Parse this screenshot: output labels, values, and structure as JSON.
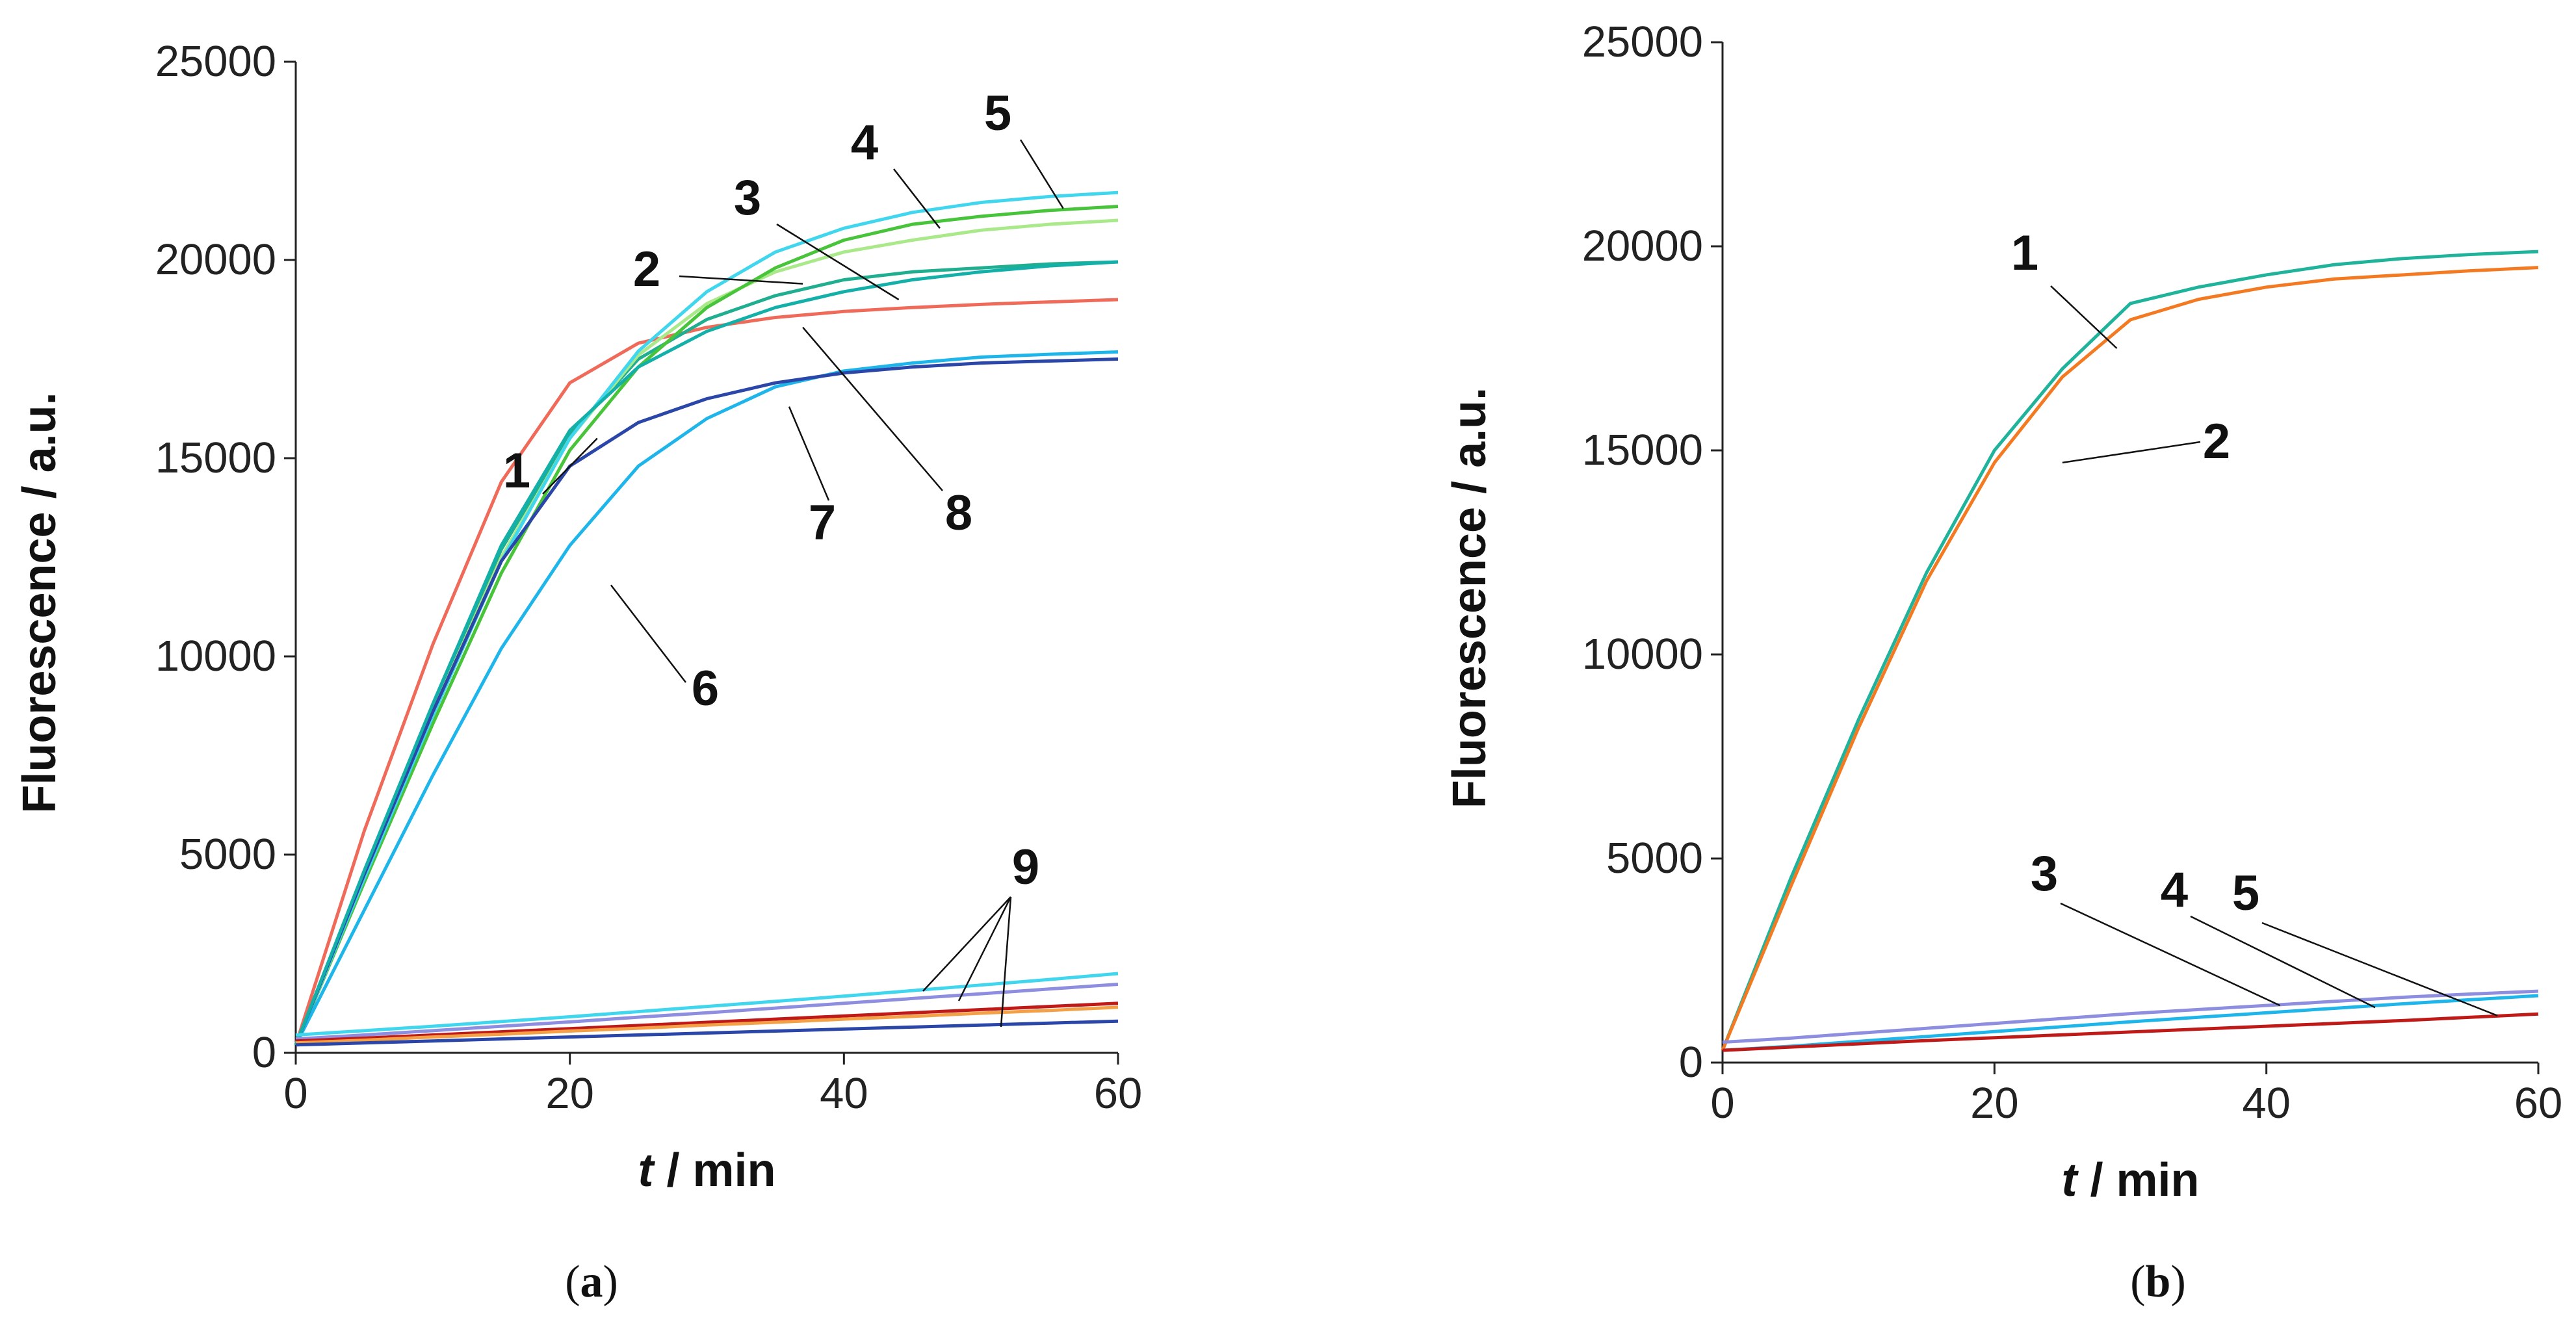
{
  "chart_data": [
    {
      "type": "line",
      "panel": "a",
      "caption": {
        "open": "(",
        "letter": "a",
        "close": ")"
      },
      "xlabel": {
        "italic": "t",
        "rest": " / min"
      },
      "ylabel": "Fluorescence / a.u.",
      "xlim": [
        0,
        60
      ],
      "ylim": [
        0,
        25000
      ],
      "xticks": [
        0,
        20,
        40,
        60
      ],
      "yticks": [
        0,
        5000,
        10000,
        15000,
        20000,
        25000
      ],
      "x": [
        0,
        5,
        10,
        15,
        20,
        25,
        30,
        35,
        40,
        45,
        50,
        55,
        60
      ],
      "series": [
        {
          "name": "1",
          "color": "#f06a5a",
          "values": [
            200,
            5600,
            10300,
            14400,
            16900,
            17900,
            18300,
            18550,
            18700,
            18800,
            18880,
            18940,
            19000
          ]
        },
        {
          "name": "2",
          "color": "#1fae8f",
          "values": [
            200,
            4500,
            8700,
            12700,
            15600,
            17500,
            18500,
            19100,
            19500,
            19700,
            19800,
            19900,
            19950
          ]
        },
        {
          "name": "3",
          "color": "#a9e98a",
          "values": [
            200,
            4500,
            8600,
            12500,
            15500,
            17600,
            18900,
            19700,
            20200,
            20500,
            20750,
            20900,
            21000
          ]
        },
        {
          "name": "4",
          "color": "#47c43a",
          "values": [
            200,
            4300,
            8300,
            12100,
            15200,
            17300,
            18800,
            19800,
            20500,
            20900,
            21100,
            21250,
            21350
          ]
        },
        {
          "name": "5",
          "color": "#3fd6ee",
          "values": [
            200,
            4400,
            8500,
            12400,
            15500,
            17700,
            19200,
            20200,
            20800,
            21200,
            21450,
            21600,
            21700
          ]
        },
        {
          "name": "6",
          "color": "#1eb6ea",
          "values": [
            200,
            3600,
            7000,
            10200,
            12800,
            14800,
            16000,
            16800,
            17200,
            17400,
            17550,
            17620,
            17680
          ]
        },
        {
          "name": "7",
          "color": "#2a46a8",
          "values": [
            200,
            4500,
            8600,
            12400,
            14800,
            15900,
            16500,
            16900,
            17150,
            17300,
            17400,
            17450,
            17500
          ]
        },
        {
          "name": "8",
          "color": "#12b0a8",
          "values": [
            200,
            4600,
            8800,
            12800,
            15700,
            17300,
            18200,
            18800,
            19200,
            19500,
            19700,
            19850,
            19950
          ]
        },
        {
          "name": "9a",
          "color": "#3fd6ee",
          "values": [
            450,
            560,
            670,
            790,
            910,
            1040,
            1170,
            1300,
            1430,
            1570,
            1710,
            1850,
            2000
          ]
        },
        {
          "name": "9b",
          "color": "#8d8ee0",
          "values": [
            350,
            450,
            560,
            670,
            780,
            900,
            1010,
            1130,
            1250,
            1370,
            1490,
            1610,
            1730
          ]
        },
        {
          "name": "9c",
          "color": "#c01a18",
          "values": [
            300,
            370,
            450,
            530,
            610,
            690,
            770,
            850,
            930,
            1010,
            1090,
            1170,
            1250
          ]
        },
        {
          "name": "9d",
          "color": "#f3a046",
          "values": [
            250,
            320,
            400,
            470,
            550,
            620,
            700,
            770,
            850,
            920,
            1000,
            1070,
            1150
          ]
        },
        {
          "name": "9e",
          "color": "#2a46a8",
          "values": [
            200,
            250,
            300,
            350,
            400,
            450,
            500,
            550,
            600,
            650,
            700,
            750,
            800
          ]
        }
      ],
      "labels": [
        "1",
        "2",
        "3",
        "4",
        "5",
        "6",
        "7",
        "8",
        "9"
      ]
    },
    {
      "type": "line",
      "panel": "b",
      "caption": {
        "open": "(",
        "letter": "b",
        "close": ")"
      },
      "xlabel": {
        "italic": "t",
        "rest": " / min"
      },
      "ylabel": "Fluorescence / a.u.",
      "xlim": [
        0,
        60
      ],
      "ylim": [
        0,
        25000
      ],
      "xticks": [
        0,
        20,
        40,
        60
      ],
      "yticks": [
        0,
        5000,
        10000,
        15000,
        20000,
        25000
      ],
      "x": [
        0,
        5,
        10,
        15,
        20,
        25,
        30,
        35,
        40,
        45,
        50,
        55,
        60
      ],
      "series": [
        {
          "name": "1",
          "color": "#1fb39b",
          "values": [
            300,
            4500,
            8400,
            12000,
            15000,
            17000,
            18600,
            19000,
            19300,
            19550,
            19700,
            19800,
            19870
          ]
        },
        {
          "name": "2",
          "color": "#f47a22",
          "values": [
            300,
            4300,
            8200,
            11800,
            14700,
            16800,
            18200,
            18700,
            19000,
            19200,
            19300,
            19400,
            19480
          ]
        },
        {
          "name": "3",
          "color": "#8d8ee0",
          "values": [
            500,
            600,
            720,
            840,
            960,
            1080,
            1200,
            1300,
            1400,
            1500,
            1600,
            1680,
            1750
          ]
        },
        {
          "name": "4",
          "color": "#1eb6ea",
          "values": [
            300,
            400,
            520,
            640,
            760,
            880,
            1000,
            1110,
            1220,
            1330,
            1440,
            1540,
            1640
          ]
        },
        {
          "name": "5",
          "color": "#c01a18",
          "values": [
            300,
            380,
            460,
            540,
            610,
            680,
            750,
            820,
            890,
            960,
            1030,
            1110,
            1190
          ]
        }
      ],
      "labels": [
        "1",
        "2",
        "3",
        "4",
        "5"
      ]
    }
  ]
}
